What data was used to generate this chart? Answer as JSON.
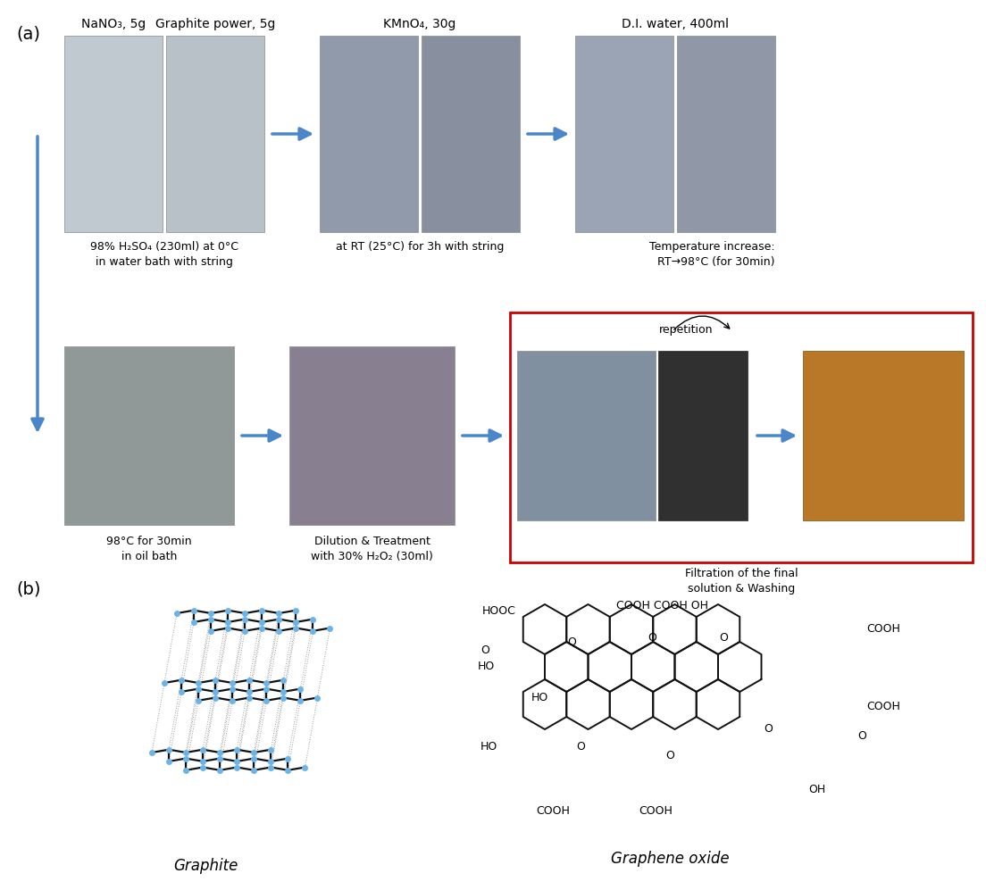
{
  "figure_width": 11.04,
  "figure_height": 9.97,
  "bg_color": "#ffffff",
  "part_a_label": "(a)",
  "part_b_label": "(b)",
  "label1": "NaNO₃, 5g",
  "label2": "Graphite power, 5g",
  "label3": "KMnO₄, 30g",
  "label4": "D.I. water, 400ml",
  "cap1": "98% H₂SO₄ (230ml) at 0°C\nin water bath with string",
  "cap2": "at RT (25°C) for 3h with string",
  "cap3": "Temperature increase:\nRT→98°C (for 30min)",
  "cap4": "98°C for 30min\nin oil bath",
  "cap5": "Dilution & Treatment\nwith 30% H₂O₂ (30ml)",
  "cap6": "Filtration of the final\nsolution & Washing",
  "repetition": "repetition",
  "red_color": "#cc0000",
  "arrow_color": "#4a86c8",
  "node_color": "#6ab4e8",
  "bond_color": "#111111",
  "label_graphite": "Graphite",
  "label_graphene_oxide": "Graphene oxide"
}
